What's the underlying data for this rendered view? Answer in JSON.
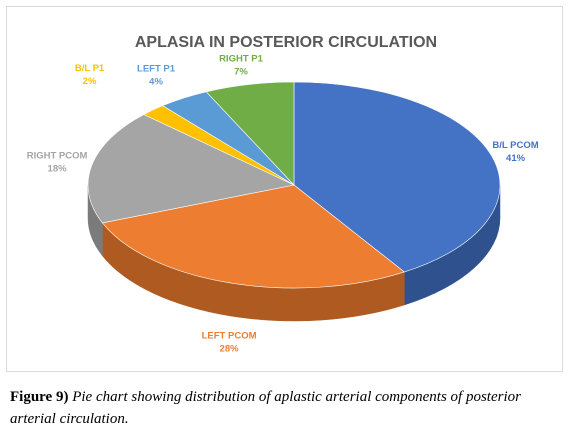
{
  "chart_data": {
    "type": "pie",
    "title": "APLASIA IN POSTERIOR CIRCULATION",
    "slices": [
      {
        "name": "B/L PCOM",
        "value": 41,
        "label": "41%",
        "color": "#4472C4",
        "side": "#2F528F",
        "text_color": "#4472C4"
      },
      {
        "name": "LEFT PCOM",
        "value": 28,
        "label": "28%",
        "color": "#ED7D31",
        "side": "#AE5A21",
        "text_color": "#ED7D31"
      },
      {
        "name": "RIGHT PCOM",
        "value": 18,
        "label": "18%",
        "color": "#A5A5A5",
        "side": "#7B7B7B",
        "text_color": "#A5A5A5"
      },
      {
        "name": "B/L P1",
        "value": 2,
        "label": "2%",
        "color": "#FFC000",
        "side": "#BF9000",
        "text_color": "#FFC000"
      },
      {
        "name": "LEFT P1",
        "value": 4,
        "label": "4%",
        "color": "#5B9BD5",
        "side": "#41719C",
        "text_color": "#5B9BD5"
      },
      {
        "name": "RIGHT P1",
        "value": 7,
        "label": "7%",
        "color": "#70AD47",
        "side": "#507E32",
        "text_color": "#70AD47"
      }
    ]
  },
  "caption": {
    "label": "Figure 9)",
    "text": "Pie chart showing distribution of aplastic arterial components of posterior arterial circulation."
  }
}
